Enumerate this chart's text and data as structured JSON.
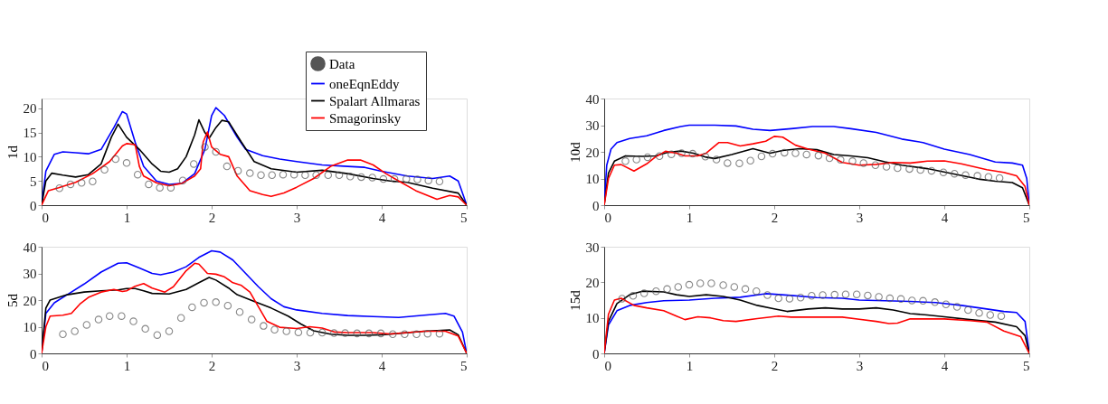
{
  "chart_data": [
    {
      "type": "line",
      "ylabel": "1d",
      "xlim": [
        0,
        5
      ],
      "xticks": [
        0,
        1,
        2,
        3,
        4,
        5
      ],
      "ylim": [
        0,
        22
      ],
      "yticks": [
        0,
        5,
        10,
        15,
        20
      ],
      "grid": false,
      "legend": "top right",
      "series": [
        {
          "name": "Data",
          "type": "scatter",
          "marker": "circle",
          "color": "#555555",
          "x": [
            0.21,
            0.34,
            0.47,
            0.6,
            0.74,
            0.87,
            1.0,
            1.13,
            1.26,
            1.39,
            1.52,
            1.66,
            1.79,
            1.92,
            2.05,
            2.18,
            2.31,
            2.45,
            2.58,
            2.71,
            2.84,
            2.97,
            3.1,
            3.23,
            3.37,
            3.5,
            3.63,
            3.76,
            3.89,
            4.02,
            4.15,
            4.29,
            4.42,
            4.55,
            4.68
          ],
          "values": [
            3.5,
            4.3,
            4.6,
            4.9,
            7.3,
            9.5,
            8.7,
            6.3,
            4.3,
            3.6,
            3.6,
            5.1,
            8.5,
            12,
            11,
            8,
            7.1,
            6.6,
            6.2,
            6.2,
            6.3,
            6.3,
            6.2,
            6.2,
            6.2,
            6.2,
            5.9,
            5.8,
            5.7,
            5.4,
            5.4,
            5.4,
            5.3,
            5.1,
            4.9
          ]
        },
        {
          "name": "oneEqnEddy",
          "color": "#0000ff",
          "x": [
            0,
            0.05,
            0.15,
            0.25,
            0.4,
            0.55,
            0.7,
            0.85,
            0.95,
            1.0,
            1.1,
            1.2,
            1.35,
            1.5,
            1.65,
            1.8,
            1.92,
            2.0,
            2.05,
            2.15,
            2.3,
            2.4,
            2.6,
            2.8,
            3.0,
            3.3,
            3.6,
            3.8,
            4.0,
            4.3,
            4.6,
            4.8,
            4.9,
            5.0
          ],
          "values": [
            0,
            7,
            10.5,
            11,
            10.8,
            10.6,
            11.5,
            16,
            19.3,
            18.8,
            13,
            8,
            5,
            4.3,
            4.5,
            6.5,
            11.5,
            18.5,
            20.1,
            18.5,
            14,
            11.5,
            10.2,
            9.5,
            9,
            8.3,
            8,
            7.8,
            7,
            6,
            5.5,
            6,
            5,
            0
          ]
        },
        {
          "name": "Spalart Allmaras",
          "color": "#000000",
          "x": [
            0,
            0.05,
            0.12,
            0.25,
            0.4,
            0.55,
            0.7,
            0.82,
            0.9,
            1.0,
            1.15,
            1.3,
            1.4,
            1.5,
            1.6,
            1.7,
            1.8,
            1.85,
            1.92,
            1.97,
            2.05,
            2.12,
            2.2,
            2.35,
            2.5,
            2.7,
            3.0,
            3.3,
            3.6,
            3.9,
            4.1,
            4.3,
            4.6,
            4.9,
            5.0
          ],
          "values": [
            0,
            5,
            6.6,
            6.2,
            5.8,
            6.3,
            8.5,
            14,
            16.7,
            14,
            11.5,
            8.5,
            7,
            6.8,
            7.5,
            10,
            14.5,
            17.6,
            15,
            13.8,
            16,
            17.5,
            17.2,
            13,
            9,
            7.5,
            6.8,
            7.2,
            6.5,
            5.5,
            5,
            4.7,
            3.5,
            2.5,
            0
          ]
        },
        {
          "name": "Smagorinsky",
          "color": "#ff0000",
          "x": [
            0,
            0.08,
            0.2,
            0.4,
            0.6,
            0.8,
            0.95,
            1.0,
            1.1,
            1.15,
            1.2,
            1.35,
            1.5,
            1.65,
            1.8,
            1.87,
            1.9,
            1.95,
            2.0,
            2.1,
            2.2,
            2.3,
            2.45,
            2.6,
            2.7,
            2.85,
            3.0,
            3.2,
            3.4,
            3.6,
            3.75,
            3.9,
            4.05,
            4.2,
            4.4,
            4.65,
            4.8,
            4.9,
            5.0
          ],
          "values": [
            0,
            3,
            3.6,
            4.7,
            6.5,
            9,
            12.2,
            12.7,
            12.5,
            8,
            6,
            4.6,
            4,
            4.5,
            6,
            7.5,
            13,
            15.1,
            12,
            10.5,
            10,
            6,
            3,
            2.2,
            1.8,
            2.5,
            3.7,
            5.5,
            8,
            9.3,
            9.3,
            8.3,
            6.5,
            5,
            3,
            1.2,
            2,
            1.7,
            0
          ]
        }
      ]
    },
    {
      "type": "line",
      "ylabel": "10d",
      "xlim": [
        0,
        5
      ],
      "xticks": [
        0,
        1,
        2,
        3,
        4,
        5
      ],
      "ylim": [
        0,
        40
      ],
      "yticks": [
        0,
        10,
        20,
        30,
        40
      ],
      "grid": false,
      "series": [
        {
          "type": "scatter",
          "marker": "circle",
          "color": "#555555",
          "x": [
            0.25,
            0.38,
            0.51,
            0.65,
            0.79,
            0.91,
            1.04,
            1.19,
            1.32,
            1.45,
            1.59,
            1.72,
            1.85,
            1.98,
            2.12,
            2.25,
            2.38,
            2.52,
            2.65,
            2.78,
            2.92,
            3.05,
            3.19,
            3.32,
            3.45,
            3.59,
            3.72,
            3.85,
            3.99,
            4.12,
            4.25,
            4.39,
            4.52,
            4.65
          ],
          "values": [
            16.5,
            17.1,
            18,
            18.4,
            19.1,
            19.5,
            19.3,
            18.2,
            17.1,
            15.8,
            15.7,
            16.7,
            18.3,
            19.3,
            19.7,
            19.5,
            19,
            18.6,
            17.6,
            17,
            16.5,
            15.8,
            15,
            14.4,
            13.9,
            13.6,
            13.2,
            12.9,
            12.3,
            11.8,
            11.3,
            11,
            10.6,
            10.2
          ]
        },
        {
          "color": "#0000ff",
          "x": [
            0,
            0.03,
            0.08,
            0.15,
            0.3,
            0.5,
            0.7,
            0.9,
            1.0,
            1.3,
            1.55,
            1.75,
            1.95,
            2.2,
            2.45,
            2.7,
            2.9,
            3.2,
            3.5,
            3.75,
            4.0,
            4.3,
            4.6,
            4.8,
            4.92,
            4.97,
            5.0
          ],
          "values": [
            0,
            15,
            21,
            23.5,
            25,
            26,
            28,
            29.5,
            30,
            30,
            29.7,
            28.5,
            28,
            28.7,
            29.5,
            29.5,
            28.7,
            27.3,
            24.8,
            23.5,
            21,
            19,
            16.2,
            15.8,
            15,
            10,
            0
          ]
        },
        {
          "color": "#000000",
          "x": [
            0,
            0.05,
            0.12,
            0.25,
            0.45,
            0.6,
            0.75,
            0.9,
            1.05,
            1.2,
            1.3,
            1.5,
            1.75,
            1.95,
            2.1,
            2.3,
            2.5,
            2.7,
            2.9,
            3.1,
            3.3,
            3.5,
            3.8,
            4.1,
            4.4,
            4.6,
            4.8,
            4.92,
            5.0
          ],
          "values": [
            0,
            12,
            16.5,
            18.5,
            18.3,
            18.5,
            19.8,
            20.3,
            19.5,
            18,
            17.5,
            19,
            21.2,
            19.5,
            20.5,
            21.2,
            20.8,
            19,
            18.5,
            17.8,
            16.3,
            15,
            13.7,
            11.8,
            9.8,
            9,
            8.5,
            6.5,
            0
          ]
        },
        {
          "color": "#ff0000",
          "x": [
            0,
            0.05,
            0.12,
            0.2,
            0.35,
            0.5,
            0.6,
            0.72,
            0.85,
            0.95,
            1.1,
            1.2,
            1.35,
            1.45,
            1.6,
            1.75,
            1.9,
            2.0,
            2.1,
            2.25,
            2.4,
            2.6,
            2.8,
            3.0,
            3.2,
            3.4,
            3.6,
            3.8,
            4.0,
            4.2,
            4.5,
            4.7,
            4.85,
            4.95,
            5.0
          ],
          "values": [
            0,
            10,
            15,
            15.2,
            12.8,
            15.5,
            18,
            20.2,
            19.5,
            18.5,
            18.5,
            19.5,
            23.5,
            23.5,
            22.2,
            23,
            24,
            25.8,
            25.5,
            22.5,
            21,
            19.5,
            16,
            15,
            15.3,
            16,
            15.8,
            16.5,
            16.6,
            15.5,
            13.3,
            12.3,
            11,
            7,
            0
          ]
        }
      ]
    },
    {
      "type": "line",
      "ylabel": "5d",
      "xlim": [
        0,
        5
      ],
      "xticks": [
        0,
        1,
        2,
        3,
        4,
        5
      ],
      "ylim": [
        0,
        40
      ],
      "yticks": [
        0,
        10,
        20,
        30,
        40
      ],
      "grid": false,
      "series": [
        {
          "type": "scatter",
          "marker": "circle",
          "color": "#555555",
          "x": [
            0.25,
            0.39,
            0.53,
            0.67,
            0.8,
            0.94,
            1.08,
            1.22,
            1.36,
            1.5,
            1.64,
            1.77,
            1.91,
            2.05,
            2.19,
            2.33,
            2.47,
            2.61,
            2.74,
            2.88,
            3.02,
            3.16,
            3.3,
            3.44,
            3.57,
            3.71,
            3.85,
            3.99,
            4.13,
            4.27,
            4.41,
            4.54,
            4.68
          ],
          "values": [
            7.2,
            8.3,
            10.7,
            12.7,
            14,
            14,
            12,
            9.2,
            6.9,
            8.3,
            13.3,
            17.3,
            19,
            19.2,
            17.9,
            15.5,
            12.7,
            10.3,
            8.9,
            8.3,
            7.9,
            7.8,
            7.8,
            7.6,
            7.6,
            7.5,
            7.5,
            7.5,
            7.2,
            7.2,
            7.2,
            7.4,
            7.4
          ]
        },
        {
          "color": "#0000ff",
          "x": [
            0,
            0.05,
            0.15,
            0.3,
            0.5,
            0.7,
            0.9,
            1.0,
            1.15,
            1.3,
            1.4,
            1.55,
            1.7,
            1.85,
            2.0,
            2.1,
            2.25,
            2.4,
            2.55,
            2.7,
            2.85,
            3.0,
            3.3,
            3.6,
            3.9,
            4.2,
            4.5,
            4.75,
            4.85,
            4.95,
            5.0
          ],
          "values": [
            0,
            15,
            19,
            22,
            26,
            30.5,
            33.8,
            34,
            32,
            30,
            29.5,
            30.5,
            32.5,
            36,
            38.5,
            38,
            35,
            30,
            25,
            20.5,
            17.5,
            16.3,
            15,
            14.2,
            13.8,
            13.5,
            14.3,
            15,
            14,
            8,
            0
          ]
        },
        {
          "color": "#000000",
          "x": [
            0,
            0.05,
            0.1,
            0.3,
            0.5,
            0.7,
            0.9,
            1.0,
            1.1,
            1.2,
            1.3,
            1.5,
            1.7,
            1.85,
            1.97,
            2.05,
            2.2,
            2.3,
            2.5,
            2.7,
            2.9,
            3.05,
            3.2,
            3.4,
            3.6,
            3.8,
            4.0,
            4.2,
            4.5,
            4.8,
            4.9,
            5.0
          ],
          "values": [
            0,
            17,
            20,
            22,
            23,
            23.5,
            23.8,
            24.3,
            24.3,
            23.5,
            22.5,
            22.3,
            24,
            26.5,
            28.5,
            27.5,
            24.5,
            22,
            19.5,
            17,
            14,
            11,
            8.5,
            7.2,
            6.8,
            6.8,
            7,
            7.5,
            8.3,
            8.8,
            7,
            0
          ]
        },
        {
          "color": "#ff0000",
          "x": [
            0,
            0.05,
            0.1,
            0.25,
            0.35,
            0.45,
            0.55,
            0.7,
            0.85,
            0.95,
            1.0,
            1.1,
            1.2,
            1.3,
            1.45,
            1.55,
            1.7,
            1.8,
            1.85,
            1.95,
            2.05,
            2.15,
            2.25,
            2.35,
            2.45,
            2.55,
            2.65,
            2.8,
            3.0,
            3.15,
            3.3,
            3.45,
            3.6,
            3.9,
            4.1,
            4.3,
            4.5,
            4.75,
            4.9,
            5.0
          ],
          "values": [
            0,
            10,
            14,
            14.3,
            15,
            18.5,
            21,
            23,
            24,
            23.2,
            23.5,
            25.2,
            26.2,
            24.5,
            23,
            25,
            31,
            33.8,
            33.5,
            30,
            29.7,
            28.7,
            26.5,
            25.5,
            23,
            17.5,
            12,
            9.8,
            9.3,
            10,
            9.5,
            8,
            7.8,
            7.8,
            7.3,
            7.8,
            8.3,
            8.3,
            6.5,
            0
          ]
        }
      ]
    },
    {
      "type": "line",
      "ylabel": "15d",
      "xlim": [
        0,
        5
      ],
      "xticks": [
        0,
        1,
        2,
        3,
        4,
        5
      ],
      "ylim": [
        0,
        30
      ],
      "yticks": [
        0,
        10,
        20,
        30
      ],
      "grid": false,
      "series": [
        {
          "type": "scatter",
          "marker": "circle",
          "color": "#555555",
          "x": [
            0.21,
            0.34,
            0.47,
            0.61,
            0.74,
            0.87,
            1.0,
            1.13,
            1.26,
            1.4,
            1.53,
            1.66,
            1.79,
            1.92,
            2.05,
            2.18,
            2.31,
            2.44,
            2.57,
            2.71,
            2.84,
            2.97,
            3.1,
            3.23,
            3.36,
            3.49,
            3.62,
            3.75,
            3.89,
            4.02,
            4.15,
            4.28,
            4.41,
            4.54,
            4.67
          ],
          "values": [
            15.4,
            16.2,
            16.9,
            17.5,
            18.1,
            18.7,
            19.3,
            19.7,
            19.7,
            19.2,
            18.7,
            18.1,
            17.5,
            16.4,
            15.5,
            15.4,
            15.7,
            16.2,
            16.4,
            16.5,
            16.6,
            16.6,
            16.3,
            15.9,
            15.5,
            15.3,
            14.9,
            14.8,
            14.4,
            13.8,
            13.1,
            12.2,
            11.4,
            10.8,
            10.5
          ]
        },
        {
          "color": "#0000ff",
          "x": [
            0,
            0.05,
            0.15,
            0.3,
            0.5,
            0.7,
            1.0,
            1.3,
            1.6,
            1.9,
            2.2,
            2.5,
            2.8,
            3.0,
            3.3,
            3.6,
            3.9,
            4.2,
            4.5,
            4.7,
            4.85,
            4.95,
            5.0
          ],
          "values": [
            0,
            8,
            12,
            13.5,
            14.3,
            14.8,
            15,
            15.5,
            15.8,
            16.8,
            16.3,
            15.7,
            15.5,
            15,
            14.8,
            14.6,
            14.3,
            13.5,
            12.5,
            11.8,
            11.5,
            9,
            0
          ]
        },
        {
          "color": "#000000",
          "x": [
            0,
            0.05,
            0.15,
            0.3,
            0.45,
            0.7,
            0.85,
            1.0,
            1.2,
            1.4,
            1.6,
            1.8,
            2.0,
            2.15,
            2.4,
            2.6,
            2.8,
            3.0,
            3.2,
            3.4,
            3.6,
            3.8,
            4.0,
            4.3,
            4.6,
            4.85,
            4.95,
            5.0
          ],
          "values": [
            0,
            9,
            14,
            16.5,
            17.5,
            17.3,
            16.5,
            16,
            16.5,
            16,
            15,
            13.5,
            12.5,
            11.8,
            12.5,
            12.8,
            12.5,
            12.5,
            12.8,
            12.2,
            11.2,
            10.8,
            10.3,
            9.5,
            8.8,
            7.5,
            5,
            0
          ]
        },
        {
          "color": "#ff0000",
          "x": [
            0,
            0.05,
            0.12,
            0.2,
            0.35,
            0.5,
            0.7,
            0.85,
            0.95,
            1.1,
            1.25,
            1.4,
            1.55,
            1.8,
            2.05,
            2.2,
            2.5,
            2.8,
            3.0,
            3.2,
            3.35,
            3.45,
            3.6,
            3.8,
            4.0,
            4.3,
            4.5,
            4.7,
            4.9,
            5.0
          ],
          "values": [
            0,
            11,
            15,
            15.5,
            13.5,
            12.8,
            12,
            10.5,
            9.5,
            10.3,
            10,
            9.2,
            9,
            9.8,
            10.5,
            10.2,
            10.2,
            10.2,
            9.6,
            9,
            8.4,
            8.5,
            9.7,
            9.7,
            9.7,
            9.2,
            8.8,
            6.3,
            4.7,
            0
          ]
        }
      ]
    }
  ]
}
